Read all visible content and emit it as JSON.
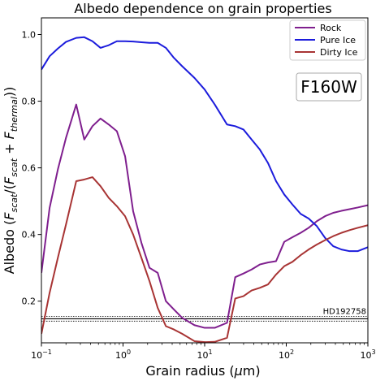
{
  "chart_data": {
    "type": "line",
    "title": "Albedo dependence on grain properties",
    "xlabel": "Grain radius (μm)",
    "ylabel": "Albedo (F_scat/(F_scat + F_thermal))",
    "xscale": "log",
    "xlim": [
      0.1,
      1000
    ],
    "ylim": [
      0.075,
      1.05
    ],
    "xticks": [
      {
        "value": 0.1,
        "base": "10",
        "exp": "−1"
      },
      {
        "value": 1,
        "base": "10",
        "exp": "0"
      },
      {
        "value": 10,
        "base": "10",
        "exp": "1"
      },
      {
        "value": 100,
        "base": "10",
        "exp": "2"
      },
      {
        "value": 1000,
        "base": "10",
        "exp": "3"
      }
    ],
    "yticks": [
      {
        "value": 0.2,
        "label": "0.2"
      },
      {
        "value": 0.4,
        "label": "0.4"
      },
      {
        "value": 0.6,
        "label": "0.6"
      },
      {
        "value": 0.8,
        "label": "0.8"
      },
      {
        "value": 1.0,
        "label": "1.0"
      }
    ],
    "grid": false,
    "legend": "top-right",
    "annotation_box": "F160W",
    "reference": {
      "label": "HD192758",
      "value": 0.147,
      "lower": 0.14,
      "upper": 0.154
    },
    "series": [
      {
        "name": "Rock",
        "color": "#7f1f8e",
        "x": [
          0.1,
          0.126,
          0.159,
          0.2,
          0.267,
          0.335,
          0.422,
          0.53,
          0.668,
          0.84,
          1.06,
          1.33,
          1.68,
          2.11,
          2.66,
          3.35,
          4.2,
          5.3,
          7.5,
          10,
          13.3,
          18.8,
          23.7,
          29.9,
          37.6,
          47.4,
          59.6,
          75,
          94.5,
          119,
          150,
          188,
          237,
          299,
          376,
          474,
          596,
          750,
          1000
        ],
        "y": [
          0.285,
          0.48,
          0.595,
          0.69,
          0.79,
          0.685,
          0.725,
          0.748,
          0.73,
          0.71,
          0.635,
          0.47,
          0.375,
          0.3,
          0.285,
          0.2,
          0.175,
          0.15,
          0.128,
          0.12,
          0.12,
          0.135,
          0.272,
          0.283,
          0.295,
          0.31,
          0.316,
          0.32,
          0.378,
          0.392,
          0.405,
          0.42,
          0.44,
          0.455,
          0.465,
          0.471,
          0.476,
          0.481,
          0.488
        ]
      },
      {
        "name": "Pure Ice",
        "color": "#1c1cdc",
        "x": [
          0.1,
          0.126,
          0.159,
          0.2,
          0.267,
          0.335,
          0.422,
          0.53,
          0.668,
          0.84,
          1.06,
          1.33,
          1.68,
          2.11,
          2.66,
          3.35,
          4.2,
          5.3,
          7.5,
          10,
          13.3,
          18.8,
          23.7,
          29.9,
          37.6,
          47.4,
          59.6,
          75,
          94.5,
          119,
          150,
          188,
          237,
          299,
          376,
          474,
          596,
          750,
          1000
        ],
        "y": [
          0.895,
          0.935,
          0.958,
          0.978,
          0.99,
          0.992,
          0.98,
          0.96,
          0.968,
          0.98,
          0.98,
          0.979,
          0.977,
          0.975,
          0.975,
          0.96,
          0.93,
          0.905,
          0.87,
          0.835,
          0.79,
          0.73,
          0.725,
          0.715,
          0.685,
          0.655,
          0.615,
          0.56,
          0.52,
          0.49,
          0.462,
          0.448,
          0.425,
          0.39,
          0.365,
          0.355,
          0.35,
          0.35,
          0.362
        ]
      },
      {
        "name": "Dirty Ice",
        "color": "#a83434",
        "x": [
          0.1,
          0.126,
          0.159,
          0.2,
          0.267,
          0.335,
          0.422,
          0.53,
          0.668,
          0.84,
          1.06,
          1.33,
          1.68,
          2.11,
          2.66,
          3.35,
          4.2,
          5.3,
          7.5,
          10,
          13.3,
          18.8,
          23.7,
          29.9,
          37.6,
          47.4,
          59.6,
          75,
          94.5,
          119,
          150,
          188,
          237,
          299,
          376,
          474,
          596,
          750,
          1000
        ],
        "y": [
          0.102,
          0.225,
          0.33,
          0.43,
          0.56,
          0.565,
          0.572,
          0.545,
          0.51,
          0.485,
          0.455,
          0.4,
          0.33,
          0.26,
          0.18,
          0.125,
          0.115,
          0.102,
          0.08,
          0.077,
          0.078,
          0.09,
          0.208,
          0.215,
          0.232,
          0.24,
          0.25,
          0.28,
          0.305,
          0.318,
          0.338,
          0.355,
          0.37,
          0.383,
          0.395,
          0.405,
          0.413,
          0.42,
          0.428
        ]
      }
    ]
  }
}
